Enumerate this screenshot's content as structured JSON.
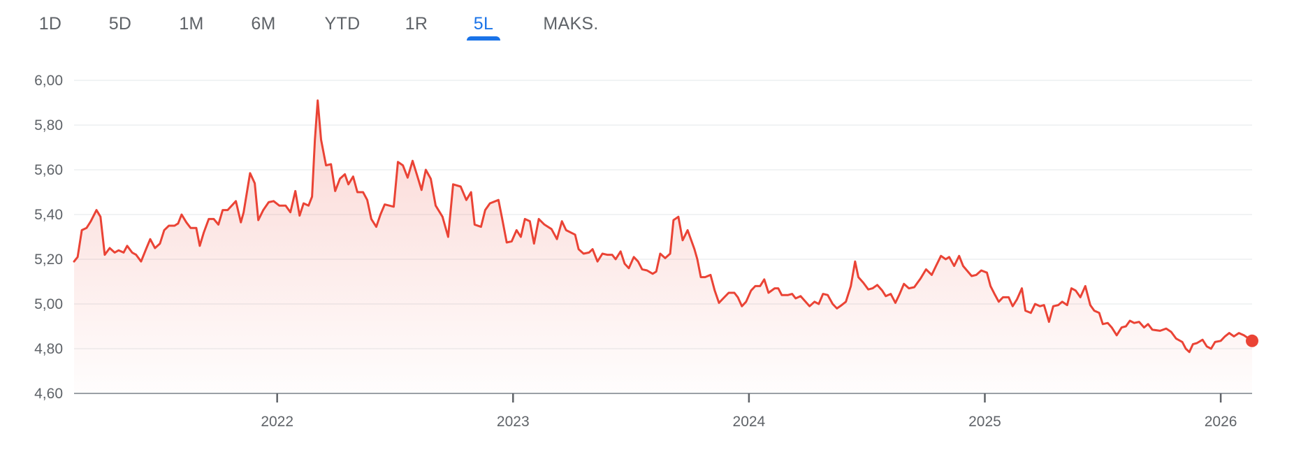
{
  "range_tabs": {
    "items": [
      {
        "label": "1D"
      },
      {
        "label": "5D"
      },
      {
        "label": "1M"
      },
      {
        "label": "6M"
      },
      {
        "label": "YTD"
      },
      {
        "label": "1R"
      },
      {
        "label": "5L"
      },
      {
        "label": "MAKS."
      }
    ],
    "active_index": 6,
    "active_color": "#1a73e8"
  },
  "chart_data": {
    "type": "area",
    "title": "",
    "xlabel": "",
    "ylabel": "",
    "ylim": [
      4.6,
      6.0
    ],
    "xlim": [
      2021.139,
      2026.133
    ],
    "grid": true,
    "legend": "none",
    "line_color": "#ea4335",
    "y_ticks": [
      {
        "value": 6.0,
        "label": "6,00"
      },
      {
        "value": 5.8,
        "label": "5,80"
      },
      {
        "value": 5.6,
        "label": "5,60"
      },
      {
        "value": 5.4,
        "label": "5,40"
      },
      {
        "value": 5.2,
        "label": "5,20"
      },
      {
        "value": 5.0,
        "label": "5,00"
      },
      {
        "value": 4.8,
        "label": "4,80"
      },
      {
        "value": 4.6,
        "label": "4,60"
      }
    ],
    "x_ticks": [
      {
        "value": 2022,
        "label": "2022"
      },
      {
        "value": 2023,
        "label": "2023"
      },
      {
        "value": 2024,
        "label": "2024"
      },
      {
        "value": 2025,
        "label": "2025"
      },
      {
        "value": 2026,
        "label": "2026"
      }
    ],
    "points": [
      [
        2021.139,
        5.19
      ],
      [
        2021.154,
        5.21
      ],
      [
        2021.172,
        5.33
      ],
      [
        2021.192,
        5.34
      ],
      [
        2021.21,
        5.37
      ],
      [
        2021.234,
        5.42
      ],
      [
        2021.251,
        5.39
      ],
      [
        2021.269,
        5.22
      ],
      [
        2021.29,
        5.25
      ],
      [
        2021.311,
        5.23
      ],
      [
        2021.328,
        5.24
      ],
      [
        2021.349,
        5.23
      ],
      [
        2021.364,
        5.26
      ],
      [
        2021.385,
        5.23
      ],
      [
        2021.402,
        5.22
      ],
      [
        2021.423,
        5.19
      ],
      [
        2021.444,
        5.245
      ],
      [
        2021.462,
        5.29
      ],
      [
        2021.482,
        5.25
      ],
      [
        2021.503,
        5.27
      ],
      [
        2021.521,
        5.33
      ],
      [
        2021.541,
        5.35
      ],
      [
        2021.565,
        5.35
      ],
      [
        2021.58,
        5.36
      ],
      [
        2021.595,
        5.4
      ],
      [
        2021.615,
        5.365
      ],
      [
        2021.633,
        5.34
      ],
      [
        2021.657,
        5.34
      ],
      [
        2021.672,
        5.26
      ],
      [
        2021.689,
        5.32
      ],
      [
        2021.71,
        5.38
      ],
      [
        2021.731,
        5.38
      ],
      [
        2021.751,
        5.355
      ],
      [
        2021.769,
        5.42
      ],
      [
        2021.79,
        5.42
      ],
      [
        2021.825,
        5.46
      ],
      [
        2021.846,
        5.365
      ],
      [
        2021.858,
        5.41
      ],
      [
        2021.885,
        5.585
      ],
      [
        2021.905,
        5.54
      ],
      [
        2021.92,
        5.375
      ],
      [
        2021.941,
        5.42
      ],
      [
        2021.964,
        5.455
      ],
      [
        2021.985,
        5.46
      ],
      [
        2022.009,
        5.44
      ],
      [
        2022.036,
        5.44
      ],
      [
        2022.056,
        5.41
      ],
      [
        2022.077,
        5.505
      ],
      [
        2022.095,
        5.395
      ],
      [
        2022.112,
        5.45
      ],
      [
        2022.133,
        5.44
      ],
      [
        2022.148,
        5.48
      ],
      [
        2022.16,
        5.735
      ],
      [
        2022.172,
        5.91
      ],
      [
        2022.186,
        5.735
      ],
      [
        2022.207,
        5.62
      ],
      [
        2022.228,
        5.625
      ],
      [
        2022.246,
        5.505
      ],
      [
        2022.266,
        5.56
      ],
      [
        2022.287,
        5.58
      ],
      [
        2022.302,
        5.535
      ],
      [
        2022.322,
        5.57
      ],
      [
        2022.34,
        5.5
      ],
      [
        2022.364,
        5.5
      ],
      [
        2022.382,
        5.465
      ],
      [
        2022.399,
        5.38
      ],
      [
        2022.42,
        5.345
      ],
      [
        2022.438,
        5.4
      ],
      [
        2022.456,
        5.445
      ],
      [
        2022.494,
        5.435
      ],
      [
        2022.512,
        5.635
      ],
      [
        2022.533,
        5.62
      ],
      [
        2022.553,
        5.565
      ],
      [
        2022.574,
        5.64
      ],
      [
        2022.592,
        5.58
      ],
      [
        2022.612,
        5.51
      ],
      [
        2022.63,
        5.6
      ],
      [
        2022.651,
        5.56
      ],
      [
        2022.672,
        5.44
      ],
      [
        2022.701,
        5.39
      ],
      [
        2022.725,
        5.3
      ],
      [
        2022.746,
        5.535
      ],
      [
        2022.778,
        5.525
      ],
      [
        2022.802,
        5.465
      ],
      [
        2022.822,
        5.5
      ],
      [
        2022.837,
        5.355
      ],
      [
        2022.864,
        5.345
      ],
      [
        2022.882,
        5.42
      ],
      [
        2022.902,
        5.45
      ],
      [
        2022.938,
        5.465
      ],
      [
        2022.956,
        5.37
      ],
      [
        2022.973,
        5.275
      ],
      [
        2022.994,
        5.28
      ],
      [
        2023.015,
        5.33
      ],
      [
        2023.033,
        5.3
      ],
      [
        2023.05,
        5.38
      ],
      [
        2023.071,
        5.37
      ],
      [
        2023.089,
        5.27
      ],
      [
        2023.109,
        5.38
      ],
      [
        2023.133,
        5.355
      ],
      [
        2023.163,
        5.335
      ],
      [
        2023.186,
        5.29
      ],
      [
        2023.207,
        5.37
      ],
      [
        2023.225,
        5.33
      ],
      [
        2023.263,
        5.31
      ],
      [
        2023.278,
        5.245
      ],
      [
        2023.299,
        5.225
      ],
      [
        2023.322,
        5.23
      ],
      [
        2023.337,
        5.245
      ],
      [
        2023.358,
        5.19
      ],
      [
        2023.379,
        5.225
      ],
      [
        2023.399,
        5.22
      ],
      [
        2023.42,
        5.22
      ],
      [
        2023.435,
        5.2
      ],
      [
        2023.456,
        5.235
      ],
      [
        2023.473,
        5.18
      ],
      [
        2023.491,
        5.16
      ],
      [
        2023.512,
        5.21
      ],
      [
        2023.53,
        5.19
      ],
      [
        2023.547,
        5.155
      ],
      [
        2023.568,
        5.15
      ],
      [
        2023.592,
        5.135
      ],
      [
        2023.607,
        5.145
      ],
      [
        2023.624,
        5.225
      ],
      [
        2023.645,
        5.205
      ],
      [
        2023.666,
        5.225
      ],
      [
        2023.68,
        5.375
      ],
      [
        2023.701,
        5.39
      ],
      [
        2023.719,
        5.285
      ],
      [
        2023.74,
        5.33
      ],
      [
        2023.769,
        5.245
      ],
      [
        2023.781,
        5.2
      ],
      [
        2023.796,
        5.12
      ],
      [
        2023.814,
        5.12
      ],
      [
        2023.837,
        5.13
      ],
      [
        2023.855,
        5.06
      ],
      [
        2023.873,
        5.005
      ],
      [
        2023.891,
        5.025
      ],
      [
        2023.914,
        5.05
      ],
      [
        2023.938,
        5.05
      ],
      [
        2023.953,
        5.03
      ],
      [
        2023.97,
        4.99
      ],
      [
        2023.988,
        5.01
      ],
      [
        2024.009,
        5.06
      ],
      [
        2024.027,
        5.08
      ],
      [
        2024.047,
        5.08
      ],
      [
        2024.065,
        5.11
      ],
      [
        2024.083,
        5.05
      ],
      [
        2024.109,
        5.07
      ],
      [
        2024.124,
        5.07
      ],
      [
        2024.139,
        5.04
      ],
      [
        2024.166,
        5.04
      ],
      [
        2024.183,
        5.045
      ],
      [
        2024.198,
        5.025
      ],
      [
        2024.219,
        5.035
      ],
      [
        2024.24,
        5.01
      ],
      [
        2024.257,
        4.99
      ],
      [
        2024.278,
        5.01
      ],
      [
        2024.296,
        5.0
      ],
      [
        2024.314,
        5.045
      ],
      [
        2024.334,
        5.04
      ],
      [
        2024.355,
        5.0
      ],
      [
        2024.373,
        4.98
      ],
      [
        2024.393,
        4.995
      ],
      [
        2024.411,
        5.01
      ],
      [
        2024.432,
        5.08
      ],
      [
        2024.45,
        5.19
      ],
      [
        2024.464,
        5.12
      ],
      [
        2024.485,
        5.095
      ],
      [
        2024.506,
        5.065
      ],
      [
        2024.524,
        5.07
      ],
      [
        2024.544,
        5.085
      ],
      [
        2024.565,
        5.06
      ],
      [
        2024.58,
        5.035
      ],
      [
        2024.601,
        5.045
      ],
      [
        2024.621,
        5.005
      ],
      [
        2024.639,
        5.045
      ],
      [
        2024.657,
        5.09
      ],
      [
        2024.678,
        5.07
      ],
      [
        2024.701,
        5.075
      ],
      [
        2024.728,
        5.115
      ],
      [
        2024.751,
        5.155
      ],
      [
        2024.775,
        5.13
      ],
      [
        2024.793,
        5.17
      ],
      [
        2024.814,
        5.215
      ],
      [
        2024.834,
        5.2
      ],
      [
        2024.849,
        5.21
      ],
      [
        2024.87,
        5.17
      ],
      [
        2024.891,
        5.215
      ],
      [
        2024.908,
        5.17
      ],
      [
        2024.944,
        5.125
      ],
      [
        2024.964,
        5.13
      ],
      [
        2024.985,
        5.15
      ],
      [
        2025.009,
        5.14
      ],
      [
        2025.024,
        5.08
      ],
      [
        2025.041,
        5.045
      ],
      [
        2025.059,
        5.01
      ],
      [
        2025.077,
        5.03
      ],
      [
        2025.101,
        5.03
      ],
      [
        2025.118,
        4.99
      ],
      [
        2025.136,
        5.02
      ],
      [
        2025.157,
        5.07
      ],
      [
        2025.172,
        4.97
      ],
      [
        2025.195,
        4.96
      ],
      [
        2025.213,
        5.0
      ],
      [
        2025.234,
        4.99
      ],
      [
        2025.251,
        4.995
      ],
      [
        2025.272,
        4.92
      ],
      [
        2025.29,
        4.99
      ],
      [
        2025.311,
        4.995
      ],
      [
        2025.328,
        5.01
      ],
      [
        2025.349,
        4.995
      ],
      [
        2025.367,
        5.07
      ],
      [
        2025.385,
        5.06
      ],
      [
        2025.405,
        5.03
      ],
      [
        2025.426,
        5.08
      ],
      [
        2025.447,
        4.995
      ],
      [
        2025.464,
        4.97
      ],
      [
        2025.485,
        4.96
      ],
      [
        2025.5,
        4.91
      ],
      [
        2025.521,
        4.915
      ],
      [
        2025.538,
        4.895
      ],
      [
        2025.559,
        4.86
      ],
      [
        2025.58,
        4.895
      ],
      [
        2025.598,
        4.9
      ],
      [
        2025.615,
        4.925
      ],
      [
        2025.633,
        4.915
      ],
      [
        2025.654,
        4.92
      ],
      [
        2025.675,
        4.895
      ],
      [
        2025.692,
        4.91
      ],
      [
        2025.71,
        4.885
      ],
      [
        2025.743,
        4.88
      ],
      [
        2025.769,
        4.89
      ],
      [
        2025.79,
        4.875
      ],
      [
        2025.811,
        4.845
      ],
      [
        2025.837,
        4.83
      ],
      [
        2025.852,
        4.8
      ],
      [
        2025.867,
        4.785
      ],
      [
        2025.882,
        4.82
      ],
      [
        2025.899,
        4.825
      ],
      [
        2025.923,
        4.84
      ],
      [
        2025.941,
        4.81
      ],
      [
        2025.959,
        4.8
      ],
      [
        2025.976,
        4.83
      ],
      [
        2026.0,
        4.835
      ],
      [
        2026.018,
        4.855
      ],
      [
        2026.036,
        4.87
      ],
      [
        2026.056,
        4.855
      ],
      [
        2026.077,
        4.87
      ],
      [
        2026.098,
        4.86
      ],
      [
        2026.133,
        4.835
      ]
    ]
  }
}
